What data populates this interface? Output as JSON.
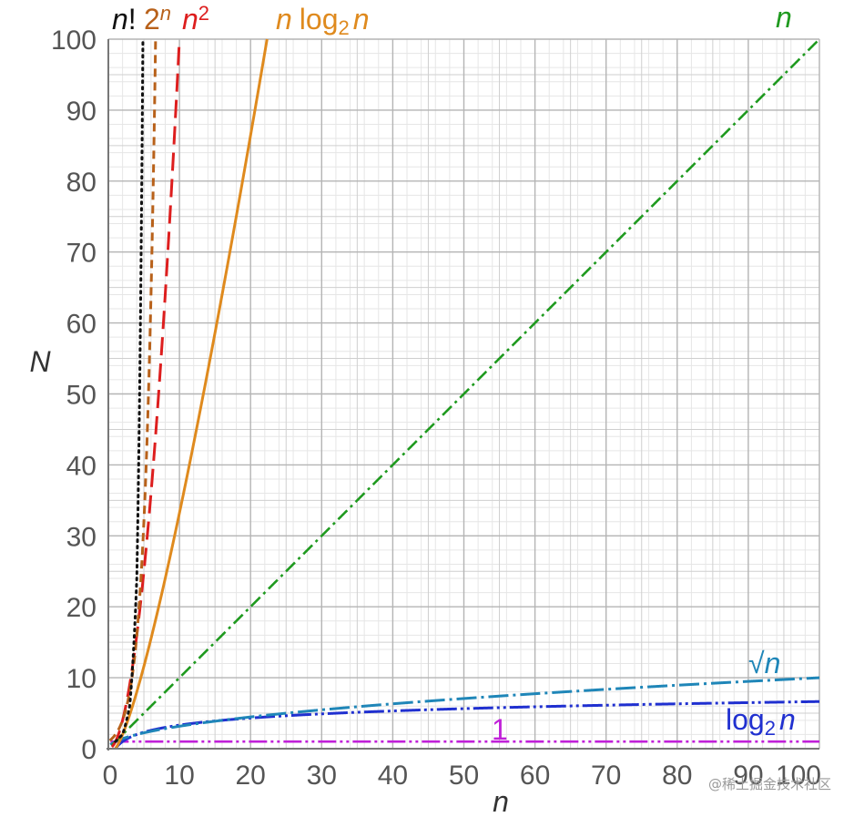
{
  "chart_data": {
    "type": "line",
    "xlabel": "n",
    "ylabel": "N",
    "xlim": [
      0,
      100
    ],
    "ylim": [
      0,
      100
    ],
    "grid": true,
    "x_ticks": [
      "0",
      "10",
      "20",
      "30",
      "40",
      "50",
      "60",
      "70",
      "80",
      "90",
      "100"
    ],
    "y_ticks": [
      "0",
      "10",
      "20",
      "30",
      "40",
      "50",
      "60",
      "70",
      "80",
      "90",
      "100"
    ],
    "series": [
      {
        "key": "factorial",
        "name_main": "n",
        "name_suffix": "!",
        "color": "#111111",
        "dash": "2,5",
        "label_pos": "top"
      },
      {
        "key": "exp2",
        "name_main": "2",
        "name_sup": "n",
        "color": "#b8611a",
        "dash": "9,6",
        "label_pos": "top"
      },
      {
        "key": "square",
        "name_main": "n",
        "name_sup": "2",
        "color": "#dd1e1e",
        "dash": "20,9",
        "label_pos": "top"
      },
      {
        "key": "nlogn",
        "name_pre": "n",
        "name_log": "log",
        "name_sub": "2",
        "name_post": "n",
        "color": "#df8a1e",
        "dash": "",
        "label_pos": "top"
      },
      {
        "key": "linear",
        "name_main": "n",
        "color": "#1f9a1f",
        "dash": "14,5,3,5",
        "label_pos": "top-right"
      },
      {
        "key": "sqrt",
        "name_main": "√n",
        "color": "#1f86b8",
        "dash": "22,5,3,5",
        "label_pos": "right"
      },
      {
        "key": "log2",
        "name_log": "log",
        "name_sub": "2",
        "name_post": "n",
        "color": "#2030d0",
        "dash": "22,4,3,4,3,4",
        "label_pos": "right"
      },
      {
        "key": "constant",
        "name_main": "1",
        "color": "#c020d8",
        "dash": "20,4,3,4,3,4",
        "label_pos": "middle"
      }
    ]
  },
  "watermark": "@稀土掘金技术社区"
}
